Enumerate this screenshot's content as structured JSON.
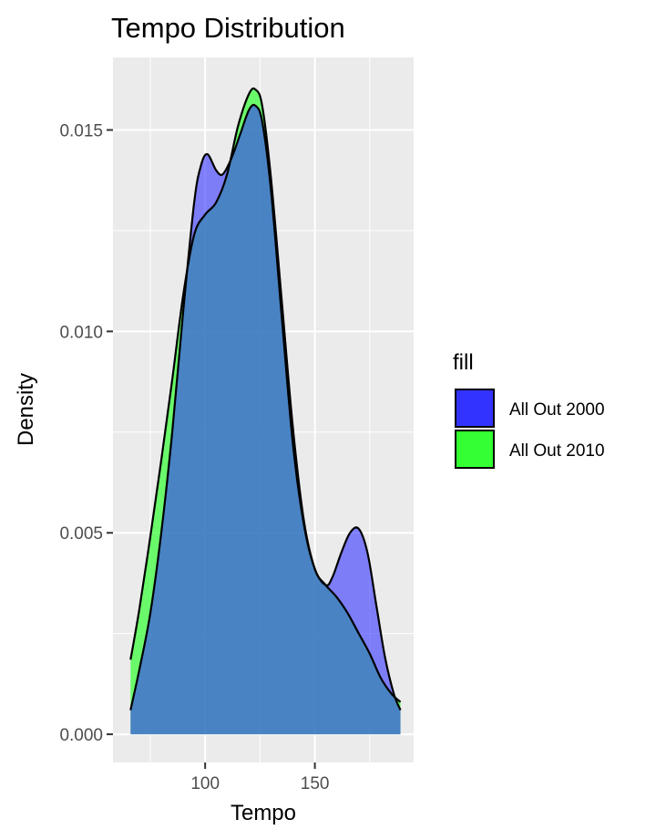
{
  "chart_data": {
    "type": "area",
    "title": "Tempo Distribution",
    "xlabel": "Tempo",
    "ylabel": "Density",
    "xlim": [
      58,
      195
    ],
    "ylim": [
      -0.0007,
      0.0168
    ],
    "x_ticks": [
      100,
      150
    ],
    "x_tick_labels": [
      "100",
      "150"
    ],
    "y_ticks": [
      0,
      0.005,
      0.01,
      0.015
    ],
    "y_tick_labels": [
      "0.000",
      "0.005",
      "0.010",
      "0.015"
    ],
    "grid": true,
    "legend": {
      "title": "fill",
      "position": "right",
      "entries": [
        {
          "label": "All Out 2000",
          "color": "#3333FF"
        },
        {
          "label": "All Out 2010",
          "color": "#33FF33"
        }
      ]
    },
    "series": [
      {
        "name": "All Out 2010",
        "color": "#33FF33",
        "opacity": 0.7,
        "x": [
          66,
          70,
          75,
          80,
          85,
          90,
          95,
          100,
          105,
          110,
          115,
          120,
          123,
          126,
          130,
          135,
          140,
          145,
          150,
          155,
          160,
          165,
          170,
          175,
          180,
          185,
          189
        ],
        "y": [
          0.00185,
          0.0031,
          0.0049,
          0.0068,
          0.0088,
          0.0109,
          0.0124,
          0.0129,
          0.0132,
          0.0139,
          0.0151,
          0.0159,
          0.016,
          0.0156,
          0.0138,
          0.0107,
          0.0076,
          0.0053,
          0.0041,
          0.0037,
          0.0034,
          0.003,
          0.0025,
          0.002,
          0.0014,
          0.001,
          0.0008
        ]
      },
      {
        "name": "All Out 2000",
        "color": "#3333FF",
        "opacity": 0.6,
        "x": [
          66,
          70,
          75,
          80,
          85,
          90,
          95,
          98,
          101,
          105,
          108,
          112,
          116,
          120,
          123,
          126,
          130,
          135,
          140,
          145,
          150,
          155,
          158,
          162,
          166,
          170,
          174,
          178,
          182,
          186,
          189
        ],
        "y": [
          0.0006,
          0.0016,
          0.003,
          0.005,
          0.0075,
          0.0105,
          0.0132,
          0.0141,
          0.0144,
          0.014,
          0.0139,
          0.0143,
          0.0149,
          0.0155,
          0.0156,
          0.0152,
          0.0135,
          0.0103,
          0.0072,
          0.0052,
          0.0041,
          0.0037,
          0.0039,
          0.0045,
          0.005,
          0.0051,
          0.0045,
          0.0032,
          0.0019,
          0.001,
          0.0006
        ]
      }
    ]
  }
}
